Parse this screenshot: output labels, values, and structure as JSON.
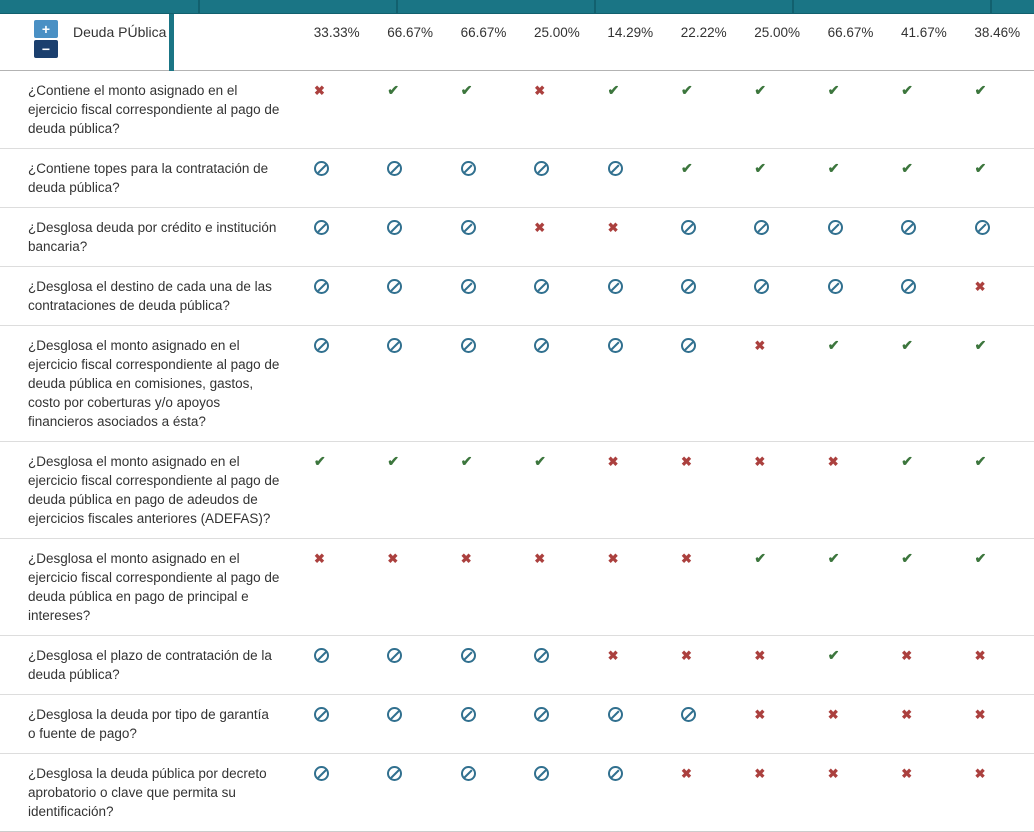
{
  "colors": {
    "topbar": "#1a7585",
    "topbar_dark": "#12606e",
    "check": "#3c763d",
    "cross": "#ab403e",
    "ban": "#31708f",
    "expand": "#4a90c4",
    "collapse": "#1b3f6e"
  },
  "icons": {
    "check": "✔",
    "cross": "✖",
    "ban": ""
  },
  "header": {
    "expand_label": "+",
    "collapse_label": "−",
    "row_group_title": "Deuda PÚblica",
    "columns": [
      "33.33%",
      "66.67%",
      "66.67%",
      "25.00%",
      "14.29%",
      "22.22%",
      "25.00%",
      "66.67%",
      "41.67%",
      "38.46%"
    ]
  },
  "rows": [
    {
      "question": "¿Contiene el monto asignado en el ejercicio fiscal correspondiente al pago de deuda pública?",
      "answers": [
        "cross",
        "check",
        "check",
        "cross",
        "check",
        "check",
        "check",
        "check",
        "check",
        "check"
      ]
    },
    {
      "question": "¿Contiene topes para la contratación de deuda pública?",
      "answers": [
        "ban",
        "ban",
        "ban",
        "ban",
        "ban",
        "check",
        "check",
        "check",
        "check",
        "check"
      ]
    },
    {
      "question": "¿Desglosa deuda por crédito e institución bancaria?",
      "answers": [
        "ban",
        "ban",
        "ban",
        "cross",
        "cross",
        "ban",
        "ban",
        "ban",
        "ban",
        "ban"
      ]
    },
    {
      "question": "¿Desglosa el destino de cada una de las contrataciones de deuda pública?",
      "answers": [
        "ban",
        "ban",
        "ban",
        "ban",
        "ban",
        "ban",
        "ban",
        "ban",
        "ban",
        "cross"
      ]
    },
    {
      "question": "¿Desglosa el monto asignado en el ejercicio fiscal correspondiente al pago de deuda pública en comisiones, gastos, costo por coberturas y/o apoyos financieros asociados a ésta?",
      "answers": [
        "ban",
        "ban",
        "ban",
        "ban",
        "ban",
        "ban",
        "cross",
        "check",
        "check",
        "check"
      ]
    },
    {
      "question": "¿Desglosa el monto asignado en el ejercicio fiscal correspondiente al pago de deuda pública en pago de adeudos de ejercicios fiscales anteriores (ADEFAS)?",
      "answers": [
        "check",
        "check",
        "check",
        "check",
        "cross",
        "cross",
        "cross",
        "cross",
        "check",
        "check"
      ]
    },
    {
      "question": "¿Desglosa el monto asignado en el ejercicio fiscal correspondiente al pago de deuda pública en pago de principal e intereses?",
      "answers": [
        "cross",
        "cross",
        "cross",
        "cross",
        "cross",
        "cross",
        "check",
        "check",
        "check",
        "check"
      ]
    },
    {
      "question": "¿Desglosa el plazo de contratación de la deuda pública?",
      "answers": [
        "ban",
        "ban",
        "ban",
        "ban",
        "cross",
        "cross",
        "cross",
        "check",
        "cross",
        "cross"
      ]
    },
    {
      "question": "¿Desglosa la deuda por tipo de garantía o fuente de pago?",
      "answers": [
        "ban",
        "ban",
        "ban",
        "ban",
        "ban",
        "ban",
        "cross",
        "cross",
        "cross",
        "cross"
      ]
    },
    {
      "question": "¿Desglosa la deuda pública por decreto aprobatorio o clave que permita su identificación?",
      "answers": [
        "ban",
        "ban",
        "ban",
        "ban",
        "ban",
        "cross",
        "cross",
        "cross",
        "cross",
        "cross"
      ]
    }
  ]
}
